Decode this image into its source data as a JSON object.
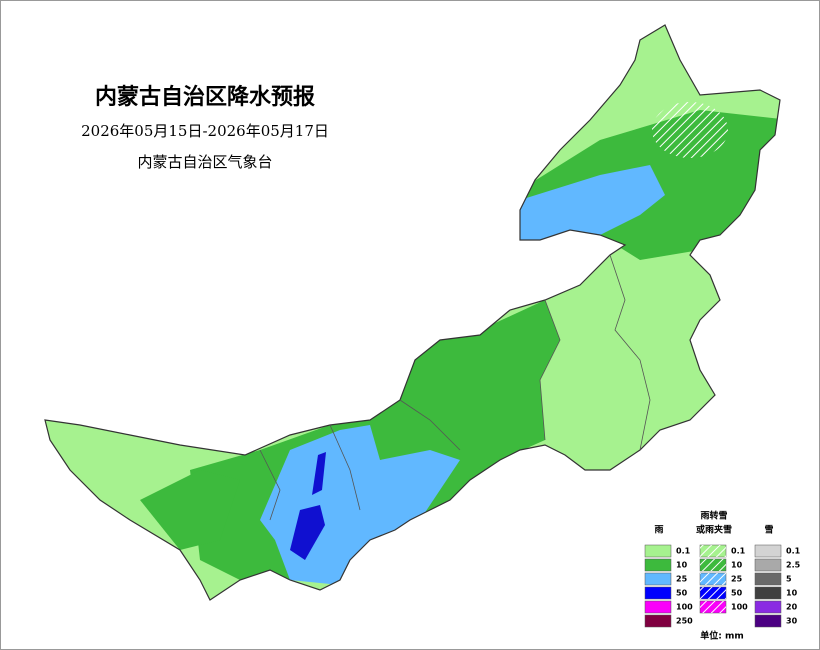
{
  "header": {
    "title": "内蒙古自治区降水预报",
    "date_range": "2026年05月15日-2026年05月17日",
    "issuer": "内蒙古自治区气象台"
  },
  "legend": {
    "columns": [
      {
        "heading": [
          "雨"
        ],
        "labels": [
          "0.1",
          "10",
          "25",
          "50",
          "100",
          "250"
        ]
      },
      {
        "heading": [
          "雨转雪",
          "或雨夹雪"
        ],
        "labels": [
          "0.1",
          "10",
          "25",
          "50",
          "100"
        ]
      },
      {
        "heading": [
          "雪"
        ],
        "labels": [
          "0.1",
          "2.5",
          "5",
          "10",
          "20",
          "30"
        ]
      }
    ],
    "unit": "单位: mm"
  }
}
